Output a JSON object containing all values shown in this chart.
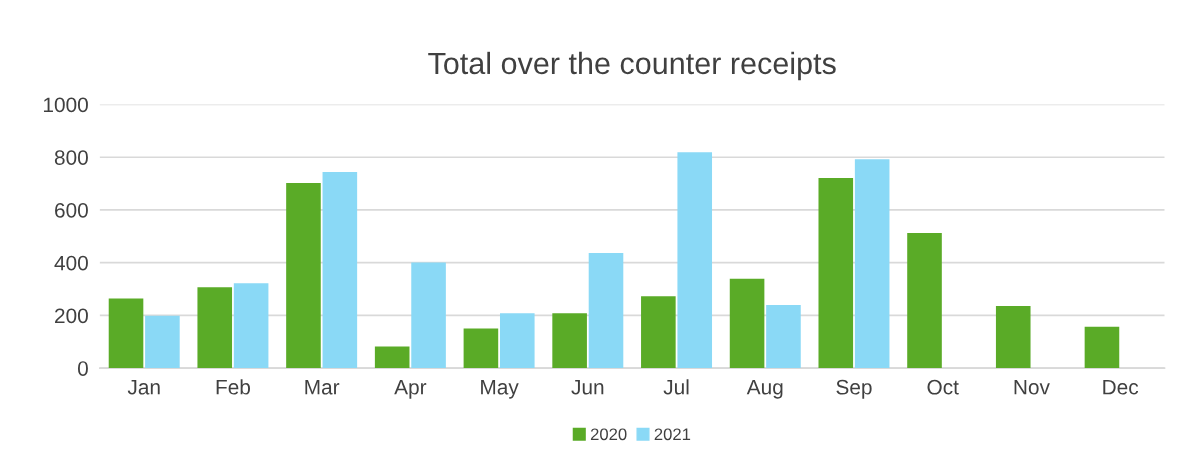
{
  "chart_data": {
    "type": "bar",
    "title": "Total over the counter receipts",
    "categories": [
      "Jan",
      "Feb",
      "Mar",
      "Apr",
      "May",
      "Jun",
      "Jul",
      "Aug",
      "Sep",
      "Oct",
      "Nov",
      "Dec"
    ],
    "series": [
      {
        "name": "2020",
        "color": "#5aab27",
        "values": [
          264,
          307,
          702,
          82,
          150,
          208,
          273,
          339,
          721,
          513,
          236,
          157
        ]
      },
      {
        "name": "2021",
        "color": "#8ad9f6",
        "values": [
          199,
          322,
          744,
          401,
          208,
          437,
          819,
          239,
          792,
          null,
          null,
          null
        ]
      }
    ],
    "ylim": [
      0,
      1000
    ],
    "yticks": [
      0,
      200,
      400,
      600,
      800,
      1000
    ],
    "grid": "y",
    "legend": "bottom"
  }
}
